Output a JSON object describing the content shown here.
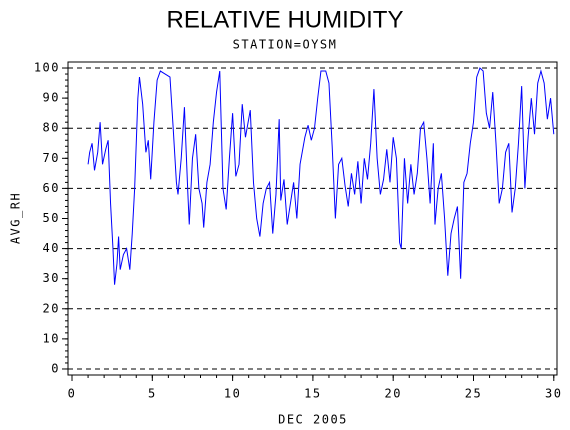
{
  "chart_data": {
    "type": "line",
    "title": "RELATIVE HUMIDITY",
    "subtitle": "STATION=OYSM",
    "x_label": "DEC 2005",
    "y_label": "AVG_RH",
    "xlim": [
      -0.25,
      30.2
    ],
    "ylim": [
      -2,
      102
    ],
    "xticks": [
      0,
      5,
      10,
      15,
      20,
      25,
      30
    ],
    "yticks": [
      0,
      10,
      20,
      30,
      40,
      50,
      60,
      70,
      80,
      90,
      100
    ],
    "grid": true,
    "color": "#0000ff",
    "x": [
      1.0,
      1.1,
      1.25,
      1.4,
      1.6,
      1.75,
      1.9,
      2.1,
      2.25,
      2.4,
      2.55,
      2.65,
      2.8,
      2.9,
      3.0,
      3.2,
      3.4,
      3.6,
      3.75,
      3.9,
      4.1,
      4.2,
      4.4,
      4.6,
      4.75,
      4.9,
      5.1,
      5.3,
      5.5,
      5.8,
      6.1,
      6.3,
      6.5,
      6.6,
      6.8,
      7.0,
      7.2,
      7.3,
      7.5,
      7.7,
      7.9,
      8.1,
      8.2,
      8.4,
      8.6,
      8.8,
      9.0,
      9.2,
      9.4,
      9.6,
      9.8,
      10.0,
      10.2,
      10.4,
      10.6,
      10.8,
      11.1,
      11.3,
      11.5,
      11.7,
      11.9,
      12.1,
      12.3,
      12.5,
      12.7,
      12.9,
      13.0,
      13.2,
      13.4,
      13.6,
      13.8,
      14.0,
      14.2,
      14.5,
      14.7,
      14.9,
      15.1,
      15.3,
      15.5,
      15.8,
      16.0,
      16.2,
      16.4,
      16.6,
      16.8,
      17.0,
      17.2,
      17.4,
      17.6,
      17.8,
      18.0,
      18.2,
      18.4,
      18.6,
      18.8,
      19.0,
      19.2,
      19.4,
      19.6,
      19.8,
      20.0,
      20.2,
      20.4,
      20.5,
      20.7,
      20.9,
      21.1,
      21.3,
      21.5,
      21.7,
      21.9,
      22.1,
      22.3,
      22.5,
      22.6,
      22.8,
      23.0,
      23.2,
      23.4,
      23.6,
      23.8,
      24.0,
      24.2,
      24.4,
      24.6,
      24.8,
      25.0,
      25.2,
      25.4,
      25.6,
      25.8,
      26.0,
      26.2,
      26.4,
      26.6,
      26.8,
      27.0,
      27.2,
      27.4,
      27.6,
      27.8,
      28.0,
      28.2,
      28.4,
      28.6,
      28.8,
      29.0,
      29.2,
      29.4,
      29.6,
      29.8,
      30.0
    ],
    "values": [
      68,
      72,
      75,
      66,
      72,
      82,
      68,
      73,
      76,
      55,
      40,
      28,
      35,
      44,
      33,
      38,
      40,
      33,
      45,
      60,
      90,
      97,
      88,
      72,
      76,
      63,
      82,
      96,
      99,
      98,
      97,
      80,
      62,
      58,
      70,
      87,
      60,
      48,
      70,
      78,
      60,
      55,
      47,
      62,
      68,
      82,
      92,
      99,
      60,
      53,
      70,
      85,
      64,
      68,
      88,
      77,
      86,
      62,
      50,
      44,
      55,
      60,
      62,
      45,
      58,
      83,
      56,
      63,
      48,
      55,
      62,
      50,
      68,
      77,
      81,
      76,
      80,
      90,
      99,
      99,
      95,
      74,
      50,
      68,
      70,
      61,
      54,
      65,
      58,
      69,
      55,
      70,
      63,
      75,
      93,
      70,
      58,
      63,
      73,
      62,
      77,
      70,
      42,
      40,
      70,
      55,
      68,
      58,
      65,
      80,
      82,
      70,
      55,
      75,
      48,
      60,
      65,
      50,
      31,
      45,
      50,
      54,
      30,
      62,
      65,
      75,
      82,
      97,
      100,
      99,
      85,
      80,
      92,
      75,
      55,
      60,
      72,
      75,
      52,
      60,
      75,
      94,
      60,
      77,
      90,
      78,
      95,
      99,
      95,
      83,
      90,
      78
    ]
  }
}
